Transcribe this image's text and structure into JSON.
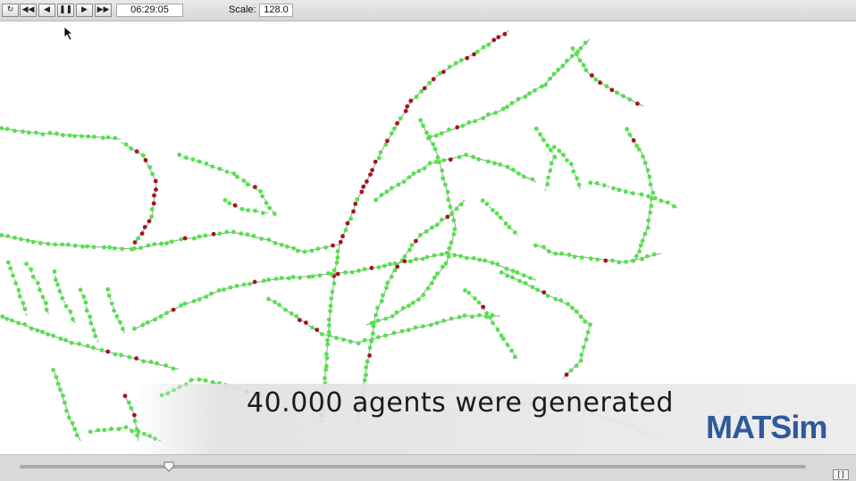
{
  "toolbar": {
    "buttons": [
      {
        "name": "restart",
        "glyph": "↻"
      },
      {
        "name": "rewind",
        "glyph": "◀◀"
      },
      {
        "name": "step-back",
        "glyph": "◀"
      },
      {
        "name": "pause",
        "glyph": "❚❚"
      },
      {
        "name": "play",
        "glyph": "▶"
      },
      {
        "name": "fast-forward",
        "glyph": "▶▶"
      }
    ],
    "time": "06:29:05",
    "scale_label": "Scale:",
    "scale_value": "128.0"
  },
  "caption": "40.000 agents were generated",
  "logo": "MATSim",
  "timeline": {
    "corner_label": "[ ]",
    "position_fraction": 0.19
  },
  "colors": {
    "agent_free": "#52e34a",
    "agent_congested": "#a3141a",
    "network": "#9a9a9a",
    "logo": "#2d5a9c"
  }
}
